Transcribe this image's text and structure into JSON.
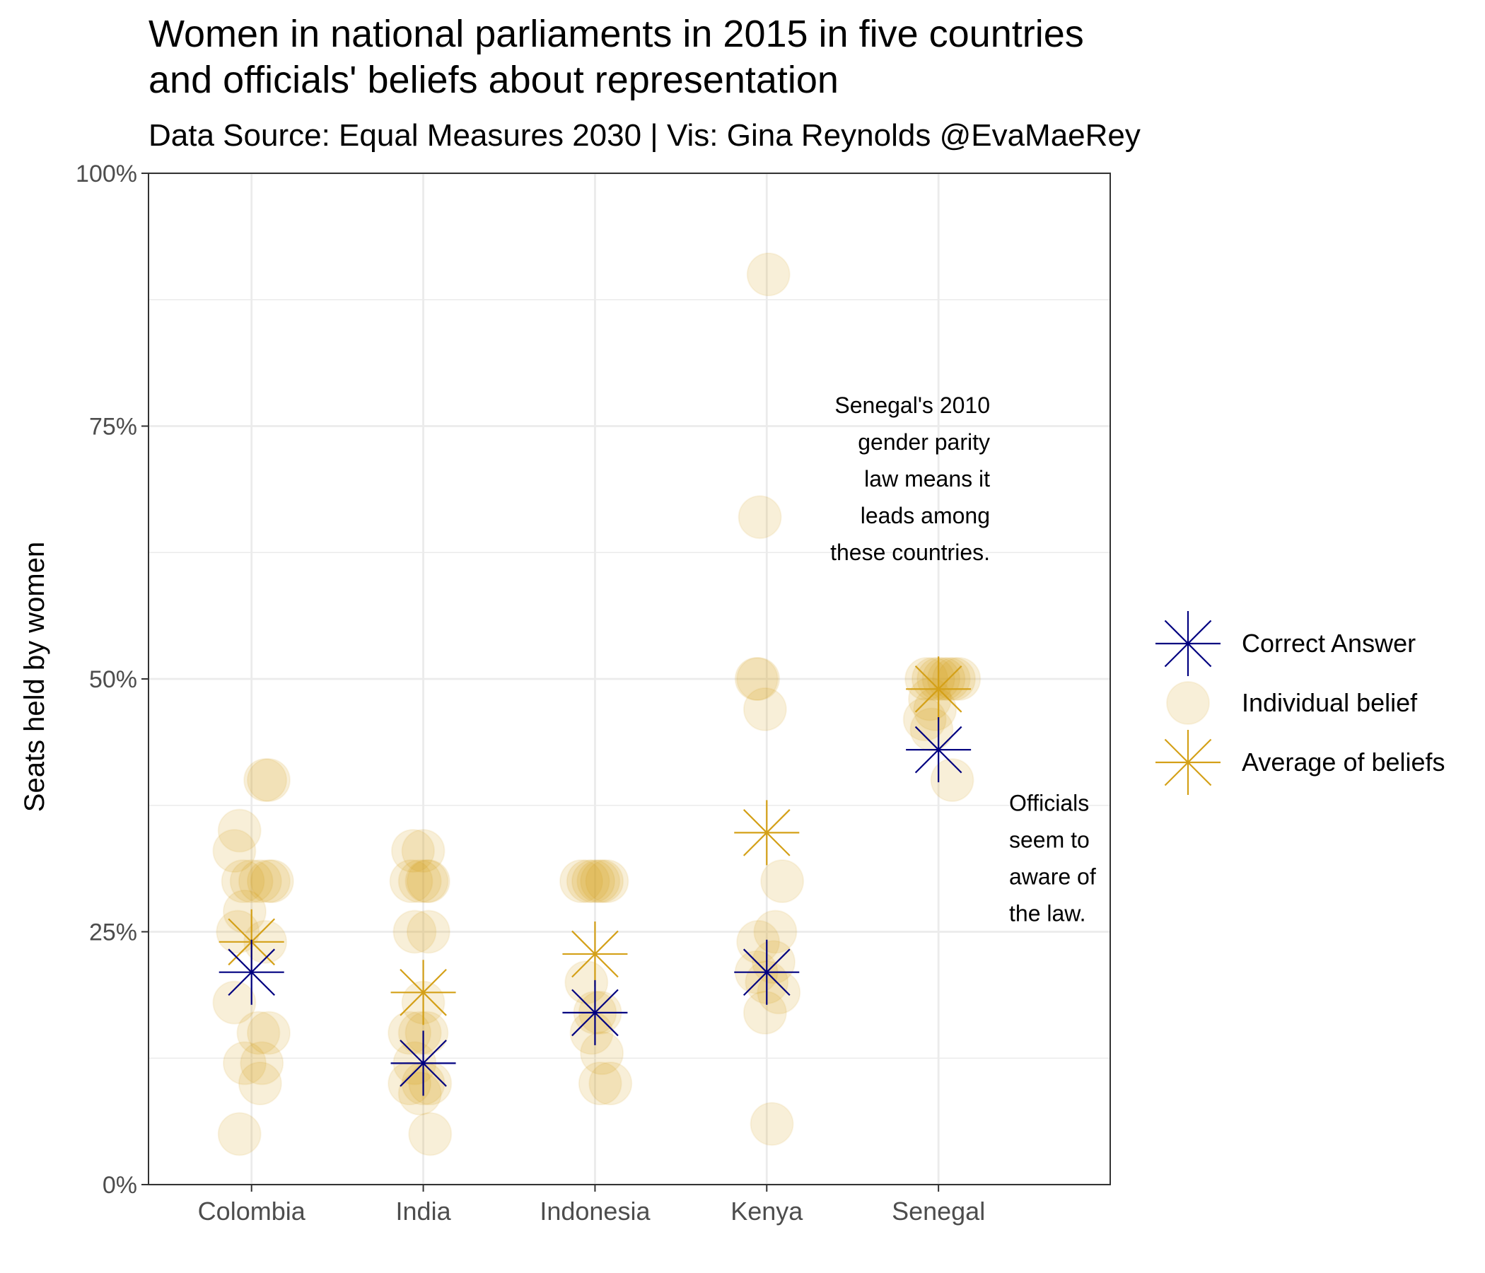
{
  "chart_data": {
    "type": "scatter",
    "title_lines": [
      "Women in national parliaments in 2015 in five countries",
      "and officials' beliefs about representation"
    ],
    "subtitle": "Data Source: Equal Measures 2030 | Vis: Gina Reynolds @EvaMaeRey",
    "xlabel": "",
    "ylabel": "Seats held by women",
    "categories": [
      "Colombia",
      "India",
      "Indonesia",
      "Kenya",
      "Senegal"
    ],
    "y_range": [
      0,
      100
    ],
    "y_ticks": [
      0,
      25,
      50,
      75,
      100
    ],
    "y_tick_labels": [
      "0%",
      "25%",
      "50%",
      "75%",
      "100%"
    ],
    "grid": true,
    "legend_position": "right",
    "legend": [
      {
        "label": "Correct Answer",
        "marker": "star",
        "color": "#000080"
      },
      {
        "label": "Individual belief",
        "marker": "circle",
        "color": "#D4A017"
      },
      {
        "label": "Average of beliefs",
        "marker": "star",
        "color": "#D4A017"
      }
    ],
    "series": [
      {
        "name": "Individual belief",
        "marker": "circle",
        "color": "#D4A017",
        "points": [
          {
            "category": "Colombia",
            "jitter": 0.08,
            "y": 40
          },
          {
            "category": "Colombia",
            "jitter": 0.1,
            "y": 40
          },
          {
            "category": "Colombia",
            "jitter": -0.07,
            "y": 35
          },
          {
            "category": "Colombia",
            "jitter": -0.1,
            "y": 33
          },
          {
            "category": "Colombia",
            "jitter": -0.05,
            "y": 30
          },
          {
            "category": "Colombia",
            "jitter": 0.0,
            "y": 30
          },
          {
            "category": "Colombia",
            "jitter": 0.05,
            "y": 30
          },
          {
            "category": "Colombia",
            "jitter": 0.1,
            "y": 30
          },
          {
            "category": "Colombia",
            "jitter": 0.12,
            "y": 30
          },
          {
            "category": "Colombia",
            "jitter": -0.04,
            "y": 27
          },
          {
            "category": "Colombia",
            "jitter": -0.08,
            "y": 25
          },
          {
            "category": "Colombia",
            "jitter": 0.08,
            "y": 24
          },
          {
            "category": "Colombia",
            "jitter": -0.1,
            "y": 18
          },
          {
            "category": "Colombia",
            "jitter": 0.04,
            "y": 15
          },
          {
            "category": "Colombia",
            "jitter": 0.1,
            "y": 15
          },
          {
            "category": "Colombia",
            "jitter": -0.04,
            "y": 12
          },
          {
            "category": "Colombia",
            "jitter": 0.06,
            "y": 12
          },
          {
            "category": "Colombia",
            "jitter": 0.05,
            "y": 10
          },
          {
            "category": "Colombia",
            "jitter": -0.07,
            "y": 5
          },
          {
            "category": "India",
            "jitter": -0.06,
            "y": 33
          },
          {
            "category": "India",
            "jitter": 0.0,
            "y": 33
          },
          {
            "category": "India",
            "jitter": -0.07,
            "y": 30
          },
          {
            "category": "India",
            "jitter": -0.02,
            "y": 30
          },
          {
            "category": "India",
            "jitter": 0.02,
            "y": 30
          },
          {
            "category": "India",
            "jitter": 0.03,
            "y": 30
          },
          {
            "category": "India",
            "jitter": -0.05,
            "y": 25
          },
          {
            "category": "India",
            "jitter": 0.03,
            "y": 25
          },
          {
            "category": "India",
            "jitter": 0.0,
            "y": 18
          },
          {
            "category": "India",
            "jitter": -0.08,
            "y": 15
          },
          {
            "category": "India",
            "jitter": -0.02,
            "y": 15
          },
          {
            "category": "India",
            "jitter": 0.02,
            "y": 15
          },
          {
            "category": "India",
            "jitter": -0.05,
            "y": 12
          },
          {
            "category": "India",
            "jitter": -0.08,
            "y": 10
          },
          {
            "category": "India",
            "jitter": 0.0,
            "y": 10
          },
          {
            "category": "India",
            "jitter": 0.04,
            "y": 10
          },
          {
            "category": "India",
            "jitter": -0.02,
            "y": 9
          },
          {
            "category": "India",
            "jitter": 0.04,
            "y": 5
          },
          {
            "category": "Indonesia",
            "jitter": -0.08,
            "y": 30
          },
          {
            "category": "Indonesia",
            "jitter": -0.04,
            "y": 30
          },
          {
            "category": "Indonesia",
            "jitter": -0.01,
            "y": 30
          },
          {
            "category": "Indonesia",
            "jitter": 0.02,
            "y": 30
          },
          {
            "category": "Indonesia",
            "jitter": 0.04,
            "y": 30
          },
          {
            "category": "Indonesia",
            "jitter": 0.07,
            "y": 30
          },
          {
            "category": "Indonesia",
            "jitter": -0.05,
            "y": 20
          },
          {
            "category": "Indonesia",
            "jitter": 0.0,
            "y": 17
          },
          {
            "category": "Indonesia",
            "jitter": 0.03,
            "y": 17
          },
          {
            "category": "Indonesia",
            "jitter": -0.02,
            "y": 15
          },
          {
            "category": "Indonesia",
            "jitter": 0.04,
            "y": 13
          },
          {
            "category": "Indonesia",
            "jitter": 0.03,
            "y": 10
          },
          {
            "category": "Indonesia",
            "jitter": 0.09,
            "y": 10
          },
          {
            "category": "Kenya",
            "jitter": 0.01,
            "y": 90
          },
          {
            "category": "Kenya",
            "jitter": -0.04,
            "y": 66
          },
          {
            "category": "Kenya",
            "jitter": -0.06,
            "y": 50
          },
          {
            "category": "Kenya",
            "jitter": -0.05,
            "y": 50
          },
          {
            "category": "Kenya",
            "jitter": -0.01,
            "y": 47
          },
          {
            "category": "Kenya",
            "jitter": 0.09,
            "y": 30
          },
          {
            "category": "Kenya",
            "jitter": 0.05,
            "y": 25
          },
          {
            "category": "Kenya",
            "jitter": -0.05,
            "y": 24
          },
          {
            "category": "Kenya",
            "jitter": 0.04,
            "y": 22
          },
          {
            "category": "Kenya",
            "jitter": -0.06,
            "y": 21
          },
          {
            "category": "Kenya",
            "jitter": 0.0,
            "y": 20
          },
          {
            "category": "Kenya",
            "jitter": 0.07,
            "y": 19
          },
          {
            "category": "Kenya",
            "jitter": -0.01,
            "y": 17
          },
          {
            "category": "Kenya",
            "jitter": 0.03,
            "y": 6
          },
          {
            "category": "Senegal",
            "jitter": -0.07,
            "y": 50
          },
          {
            "category": "Senegal",
            "jitter": -0.03,
            "y": 50
          },
          {
            "category": "Senegal",
            "jitter": 0.0,
            "y": 50
          },
          {
            "category": "Senegal",
            "jitter": 0.03,
            "y": 50
          },
          {
            "category": "Senegal",
            "jitter": 0.06,
            "y": 50
          },
          {
            "category": "Senegal",
            "jitter": 0.09,
            "y": 50
          },
          {
            "category": "Senegal",
            "jitter": 0.12,
            "y": 50
          },
          {
            "category": "Senegal",
            "jitter": -0.05,
            "y": 48
          },
          {
            "category": "Senegal",
            "jitter": -0.02,
            "y": 47
          },
          {
            "category": "Senegal",
            "jitter": -0.08,
            "y": 46
          },
          {
            "category": "Senegal",
            "jitter": -0.04,
            "y": 45
          },
          {
            "category": "Senegal",
            "jitter": 0.08,
            "y": 40
          }
        ]
      },
      {
        "name": "Average of beliefs",
        "marker": "star",
        "color": "#D4A017",
        "points": [
          {
            "category": "Colombia",
            "y": 24
          },
          {
            "category": "India",
            "y": 19
          },
          {
            "category": "Indonesia",
            "y": 22.8
          },
          {
            "category": "Kenya",
            "y": 34.8
          },
          {
            "category": "Senegal",
            "y": 49
          }
        ]
      },
      {
        "name": "Correct Answer",
        "marker": "star",
        "color": "#000080",
        "points": [
          {
            "category": "Colombia",
            "y": 21
          },
          {
            "category": "India",
            "y": 12
          },
          {
            "category": "Indonesia",
            "y": 17
          },
          {
            "category": "Kenya",
            "y": 21
          },
          {
            "category": "Senegal",
            "y": 43
          }
        ]
      }
    ],
    "annotations": [
      {
        "category": "Kenya",
        "y": 77,
        "lines": [
          "Senegal's 2010",
          "gender parity",
          "law means it",
          "leads among",
          "these countries."
        ]
      },
      {
        "category": "Senegal",
        "y": 31,
        "lines": [
          "Officials",
          "seem to",
          "aware of",
          "the law."
        ]
      }
    ]
  }
}
